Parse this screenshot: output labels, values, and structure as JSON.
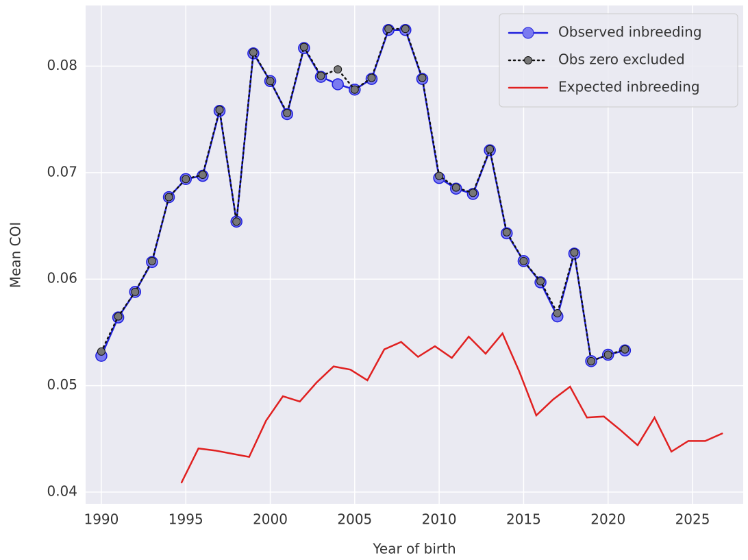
{
  "chart_data": {
    "type": "line",
    "xlabel": "Year of birth",
    "ylabel": "Mean COI",
    "xlim": [
      1989.07,
      2028.0
    ],
    "xticks": [
      1990,
      1995,
      2000,
      2005,
      2010,
      2015,
      2020,
      2025
    ],
    "ylim": [
      0.0389,
      0.0857
    ],
    "yticks": [
      0.04,
      0.05,
      0.06,
      0.07,
      0.08
    ],
    "grid": true,
    "legend": "upper right",
    "series": [
      {
        "name": "Observed inbreeding",
        "color": "#1f1fdd",
        "marker": "circle",
        "marker_color": "#7b7bf0",
        "linestyle": "solid",
        "x": [
          1990,
          1991,
          1992,
          1993,
          1994,
          1995,
          1996,
          1997,
          1998,
          1999,
          2000,
          2001,
          2002,
          2003,
          2004,
          2005,
          2006,
          2007,
          2008,
          2009,
          2010,
          2011,
          2012,
          2013,
          2014,
          2015,
          2016,
          2017,
          2018,
          2019,
          2020,
          2021
        ],
        "values": [
          0.0528,
          0.0564,
          0.0588,
          0.0616,
          0.0677,
          0.0694,
          0.0697,
          0.0758,
          0.0654,
          0.0812,
          0.0786,
          0.0755,
          0.0817,
          0.079,
          0.0783,
          0.0778,
          0.0788,
          0.0834,
          0.0834,
          0.0788,
          0.0695,
          0.0685,
          0.068,
          0.0721,
          0.0643,
          0.0617,
          0.0597,
          0.0565,
          0.0624,
          0.0523,
          0.0529,
          0.0533
        ]
      },
      {
        "name": "Obs zero excluded",
        "color": "#111111",
        "marker": "circle",
        "marker_color": "#777777",
        "linestyle": "dotted",
        "x": [
          1990,
          1991,
          1992,
          1993,
          1994,
          1995,
          1996,
          1997,
          1998,
          1999,
          2000,
          2001,
          2002,
          2003,
          2004,
          2005,
          2006,
          2007,
          2008,
          2009,
          2010,
          2011,
          2012,
          2013,
          2014,
          2015,
          2016,
          2017,
          2018,
          2019,
          2020,
          2021
        ],
        "values": [
          0.0532,
          0.0565,
          0.0588,
          0.0617,
          0.0677,
          0.0694,
          0.0698,
          0.0759,
          0.0654,
          0.0813,
          0.0786,
          0.0756,
          0.0818,
          0.0791,
          0.0797,
          0.0778,
          0.0789,
          0.0835,
          0.0835,
          0.0789,
          0.0697,
          0.0686,
          0.0681,
          0.0722,
          0.0644,
          0.0617,
          0.0598,
          0.0568,
          0.0625,
          0.0523,
          0.0529,
          0.0534
        ]
      },
      {
        "name": "Expected inbreeding",
        "color": "#e02020",
        "marker": "none",
        "linestyle": "solid",
        "x": [
          1994.75,
          1995.75,
          1996.75,
          1997.75,
          1998.75,
          1999.75,
          2000.75,
          2001.75,
          2002.75,
          2003.75,
          2004.75,
          2005.75,
          2006.75,
          2007.75,
          2008.75,
          2009.75,
          2010.75,
          2011.75,
          2012.75,
          2013.75,
          2014.75,
          2015.75,
          2016.75,
          2017.75,
          2018.75,
          2019.75,
          2020.75,
          2021.75,
          2022.75,
          2023.75,
          2024.75,
          2025.75,
          2026.75
        ],
        "values": [
          0.0409,
          0.0441,
          0.0439,
          0.0436,
          0.0433,
          0.0467,
          0.049,
          0.0485,
          0.0503,
          0.0518,
          0.0515,
          0.0505,
          0.0534,
          0.0541,
          0.0527,
          0.0537,
          0.0526,
          0.0546,
          0.053,
          0.0549,
          0.0513,
          0.0472,
          0.0487,
          0.0499,
          0.047,
          0.0471,
          0.0458,
          0.0444,
          0.047,
          0.0438,
          0.0448,
          0.0448,
          0.0455
        ]
      }
    ]
  }
}
